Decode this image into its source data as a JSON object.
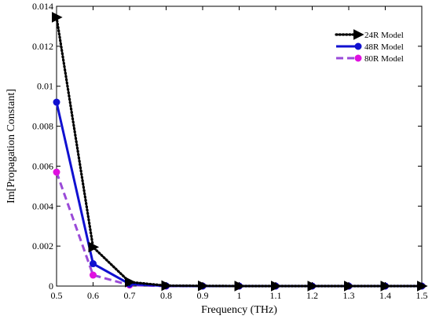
{
  "chart_data": {
    "type": "line",
    "xlabel": "Frequency (THz)",
    "ylabel": "Im[Propagation Constant]",
    "xlim": [
      0.5,
      1.5
    ],
    "ylim": [
      0,
      0.014
    ],
    "x_ticks": [
      "0.5",
      "0.6",
      "0.7",
      "0.8",
      "0.9",
      "1",
      "1.1",
      "1.2",
      "1.3",
      "1.4",
      "1.5"
    ],
    "y_ticks": [
      "0",
      "0.002",
      "0.004",
      "0.006",
      "0.008",
      "0.01",
      "0.012",
      "0.014"
    ],
    "grid": false,
    "legend_position": "top-right",
    "x": [
      0.5,
      0.6,
      0.7,
      0.8,
      0.9,
      1.0,
      1.1,
      1.2,
      1.3,
      1.4,
      1.5
    ],
    "series": [
      {
        "name": "24R Model",
        "values": [
          0.01345,
          0.00195,
          0.0002,
          2e-05,
          1e-05,
          0,
          0,
          0,
          0,
          0,
          0
        ],
        "color": "#000000",
        "line_style": "dotted",
        "marker": "triangle-right"
      },
      {
        "name": "48R Model",
        "values": [
          0.0092,
          0.00112,
          0.0001,
          1e-05,
          0,
          0,
          0,
          0,
          0,
          0,
          0
        ],
        "color": "#1010d0",
        "line_style": "solid",
        "marker": "circle"
      },
      {
        "name": "80R Model",
        "values": [
          0.0057,
          0.00055,
          5e-05,
          0,
          0,
          0,
          0,
          0,
          0,
          0,
          0
        ],
        "color": "#e010e0",
        "line_color": "#9a4ad8",
        "line_style": "dashed",
        "marker": "circle"
      }
    ]
  }
}
